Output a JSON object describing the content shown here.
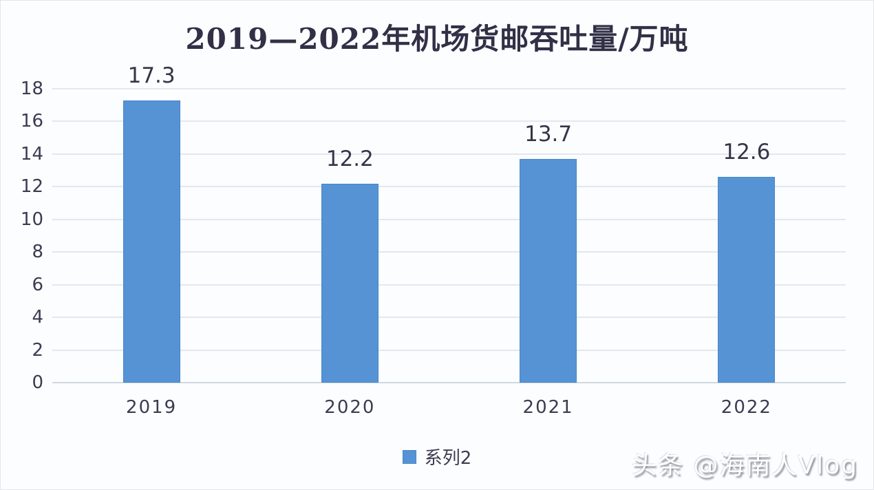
{
  "chart_data": {
    "type": "bar",
    "title": "2019—2022年机场货邮吞吐量/万吨",
    "categories": [
      "2019",
      "2020",
      "2021",
      "2022"
    ],
    "series": [
      {
        "name": "系列2",
        "values": [
          17.3,
          12.2,
          13.7,
          12.6
        ]
      }
    ],
    "data_labels": [
      "17.3",
      "12.2",
      "13.7",
      "12.6"
    ],
    "ylim": [
      0,
      18
    ],
    "ytick_step": 2,
    "grid": true,
    "legend_position": "bottom",
    "bar_color": "#5593d5",
    "xlabel": "",
    "ylabel": ""
  },
  "watermark": {
    "text": "头条 @海南人Vlog"
  }
}
